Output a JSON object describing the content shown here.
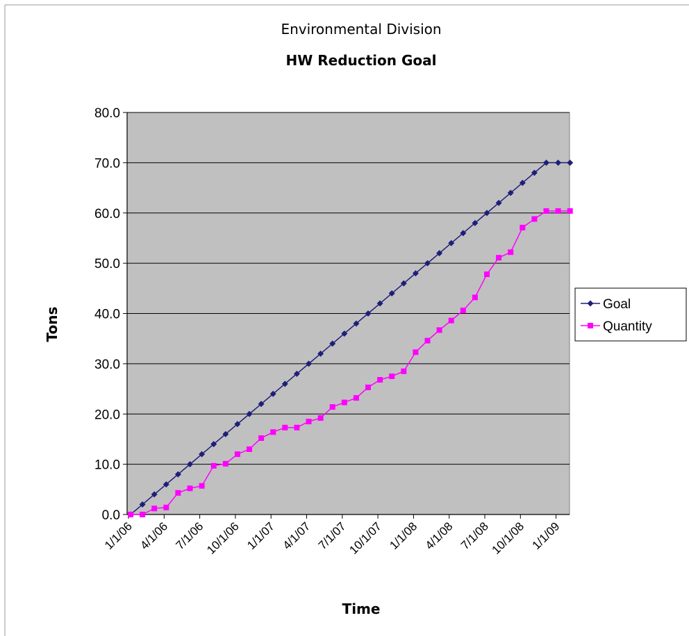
{
  "colors": {
    "goal": "#1f1f7a",
    "quantity": "#ff00ff",
    "plot_bg": "#c0c0c0",
    "gridline": "#000000"
  },
  "chart_data": {
    "type": "line",
    "title": "Environmental Division",
    "subtitle": "HW Reduction Goal",
    "xlabel": "Time",
    "ylabel": "Tons",
    "x_tick_labels": [
      "1/1/06",
      "4/1/06",
      "7/1/06",
      "10/1/06",
      "1/1/07",
      "4/1/07",
      "7/1/07",
      "10/1/07",
      "1/1/08",
      "4/1/08",
      "7/1/08",
      "10/1/08",
      "1/1/09"
    ],
    "y_tick_labels": [
      "0.0",
      "10.0",
      "20.0",
      "30.0",
      "40.0",
      "50.0",
      "60.0",
      "70.0",
      "80.0"
    ],
    "ylim": [
      0,
      80
    ],
    "x": [
      "1/1/06",
      "2/1/06",
      "3/1/06",
      "4/1/06",
      "5/1/06",
      "6/1/06",
      "7/1/06",
      "8/1/06",
      "9/1/06",
      "10/1/06",
      "11/1/06",
      "12/1/06",
      "1/1/07",
      "2/1/07",
      "3/1/07",
      "4/1/07",
      "5/1/07",
      "6/1/07",
      "7/1/07",
      "8/1/07",
      "9/1/07",
      "10/1/07",
      "11/1/07",
      "12/1/07",
      "1/1/08",
      "2/1/08",
      "3/1/08",
      "4/1/08",
      "5/1/08",
      "6/1/08",
      "7/1/08",
      "8/1/08",
      "9/1/08",
      "10/1/08",
      "11/1/08",
      "12/1/08",
      "1/1/09",
      "2/1/09"
    ],
    "grid": true,
    "legend_position": "right",
    "series": [
      {
        "name": "Goal",
        "marker": "diamond",
        "values": [
          0,
          2,
          4,
          6,
          8,
          10,
          12,
          14,
          16,
          18,
          20,
          22,
          24,
          26,
          28,
          30,
          32,
          34,
          36,
          38,
          40,
          42,
          44,
          46,
          48,
          50,
          52,
          54,
          56,
          58,
          60,
          62,
          64,
          66,
          68,
          70,
          70,
          70
        ]
      },
      {
        "name": "Quantity",
        "marker": "square",
        "values": [
          0,
          0,
          1.2,
          1.4,
          4.3,
          5.2,
          5.7,
          9.7,
          10.1,
          12.0,
          13.0,
          15.2,
          16.4,
          17.3,
          17.3,
          18.5,
          19.2,
          21.4,
          22.3,
          23.2,
          25.3,
          26.8,
          27.5,
          28.5,
          32.3,
          34.6,
          36.7,
          38.6,
          40.6,
          43.2,
          47.8,
          51.1,
          52.2,
          57.1,
          58.8,
          60.4,
          60.4,
          60.4
        ]
      }
    ]
  }
}
